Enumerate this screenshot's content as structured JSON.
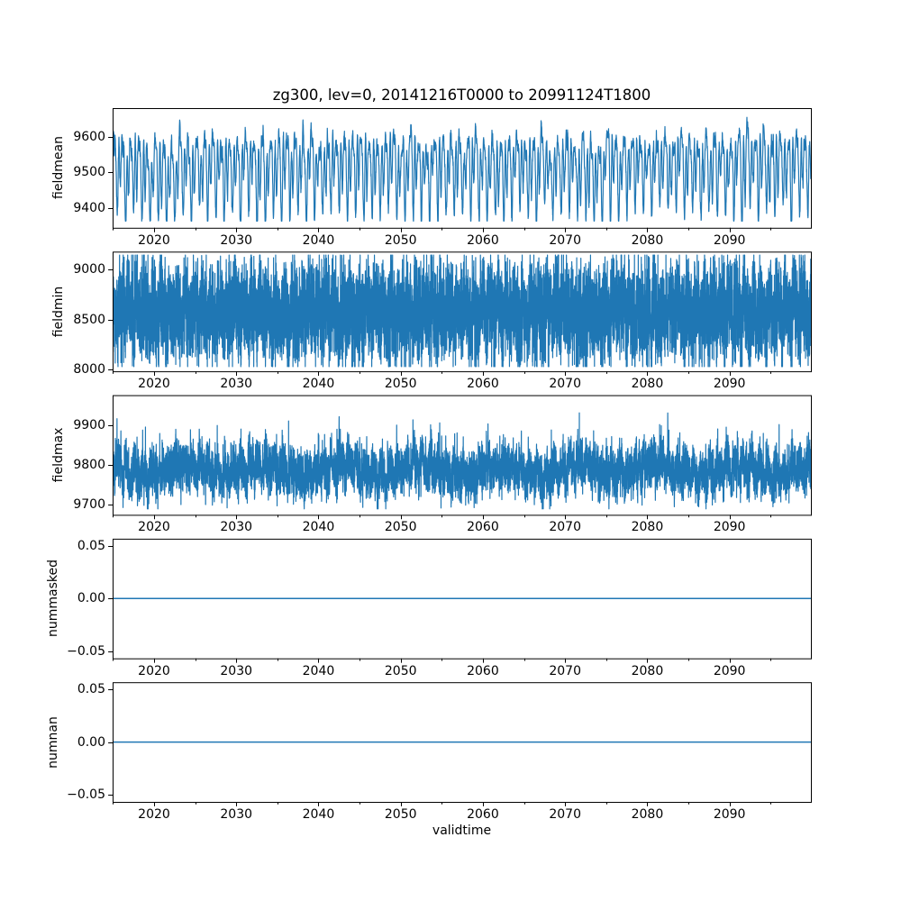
{
  "figure": {
    "title": "zg300, lev=0, 20141216T0000 to 20991124T1800",
    "xlabel": "validtime",
    "background_color": "#ffffff",
    "line_color": "#1f77b4",
    "axis_color": "#000000",
    "text_color": "#000000"
  },
  "chart_data": {
    "type": "line",
    "title": "zg300, lev=0, 20141216T0000 to 20991124T1800",
    "xlabel": "validtime",
    "grid": false,
    "legend": "none",
    "line_color": "#1f77b4",
    "x_start": 2014.96,
    "x_end": 2099.9,
    "x_major_ticks": [
      2020,
      2030,
      2040,
      2050,
      2060,
      2070,
      2080,
      2090
    ],
    "x_minor_ticks": [
      2015,
      2025,
      2035,
      2045,
      2055,
      2065,
      2075,
      2085,
      2095
    ],
    "subplots": [
      {
        "ylabel": "fieldmean",
        "ylim": [
          9343,
          9683
        ],
        "yticks": [
          {
            "value": 9400,
            "label": "9400"
          },
          {
            "value": 9500,
            "label": "9500"
          },
          {
            "value": 9600,
            "label": "9600"
          }
        ],
        "series": {
          "kind": "harmonic_noise",
          "summary": "6-hourly global mean of zg300; seasonal oscillation between about 9380 and 9660",
          "seed": 101,
          "base": 9512,
          "harmonics": [
            {
              "period_years": 1.0,
              "amp": 58,
              "phase": 0.15
            },
            {
              "period_years": 0.5,
              "amp": 62,
              "phase": 0.8
            },
            {
              "period_years": 0.3333,
              "amp": 42,
              "phase": 2.1
            },
            {
              "period_years": 13.7,
              "amp": 8,
              "phase": 0.4
            }
          ],
          "noise": {
            "sigma": 22,
            "ar": 0.88
          },
          "spikes": {
            "prob": 0,
            "amp": 0
          },
          "clip": [
            9362,
            9668
          ],
          "samples_per_year": 70
        }
      },
      {
        "ylabel": "fieldmin",
        "ylim": [
          7981,
          9182
        ],
        "yticks": [
          {
            "value": 8000,
            "label": "8000"
          },
          {
            "value": 8500,
            "label": "8500"
          },
          {
            "value": 9000,
            "label": "9000"
          }
        ],
        "series": {
          "kind": "harmonic_noise",
          "summary": "6-hourly field minimum of zg300; dense noisy band between about 8050 and 9150",
          "seed": 202,
          "base": 8578,
          "harmonics": [
            {
              "period_years": 1.0,
              "amp": 95,
              "phase": 0.35
            },
            {
              "period_years": 0.5,
              "amp": 45,
              "phase": 1.7
            },
            {
              "period_years": 7.3,
              "amp": 25,
              "phase": 0.9
            }
          ],
          "noise": {
            "sigma": 225,
            "ar": 0.1
          },
          "spikes": {
            "prob": 0.015,
            "amp": -160
          },
          "clip": [
            8028,
            9148
          ],
          "samples_per_year": 150
        }
      },
      {
        "ylabel": "fieldmax",
        "ylim": [
          9674,
          9976
        ],
        "yticks": [
          {
            "value": 9700,
            "label": "9700"
          },
          {
            "value": 9800,
            "label": "9800"
          },
          {
            "value": 9900,
            "label": "9900"
          }
        ],
        "series": {
          "kind": "harmonic_noise",
          "summary": "6-hourly field maximum of zg300; fuzzy band around 9740-9860 with spikes up to about 9950",
          "seed": 303,
          "base": 9786,
          "harmonics": [
            {
              "period_years": 1.0,
              "amp": 17,
              "phase": 0.6
            },
            {
              "period_years": 9.5,
              "amp": 12,
              "phase": 0.3
            },
            {
              "period_years": 0.5,
              "amp": 8,
              "phase": 1.2
            }
          ],
          "noise": {
            "sigma": 29,
            "ar": 0.45
          },
          "spikes": {
            "prob": 0.012,
            "amp": 90
          },
          "clip": [
            9689,
            9955
          ],
          "samples_per_year": 150
        }
      },
      {
        "ylabel": "nummasked",
        "ylim": [
          -0.0567,
          0.0567
        ],
        "yticks": [
          {
            "value": -0.05,
            "label": "−0.05"
          },
          {
            "value": 0,
            "label": "0.00"
          },
          {
            "value": 0.05,
            "label": "0.05"
          }
        ],
        "series": {
          "kind": "constant",
          "value": 0,
          "summary": "number of masked points is 0 over the whole period"
        }
      },
      {
        "ylabel": "numnan",
        "ylim": [
          -0.0567,
          0.0567
        ],
        "yticks": [
          {
            "value": -0.05,
            "label": "−0.05"
          },
          {
            "value": 0,
            "label": "0.00"
          },
          {
            "value": 0.05,
            "label": "0.05"
          }
        ],
        "series": {
          "kind": "constant",
          "value": 0,
          "summary": "number of NaN points is 0 over the whole period"
        }
      }
    ]
  }
}
